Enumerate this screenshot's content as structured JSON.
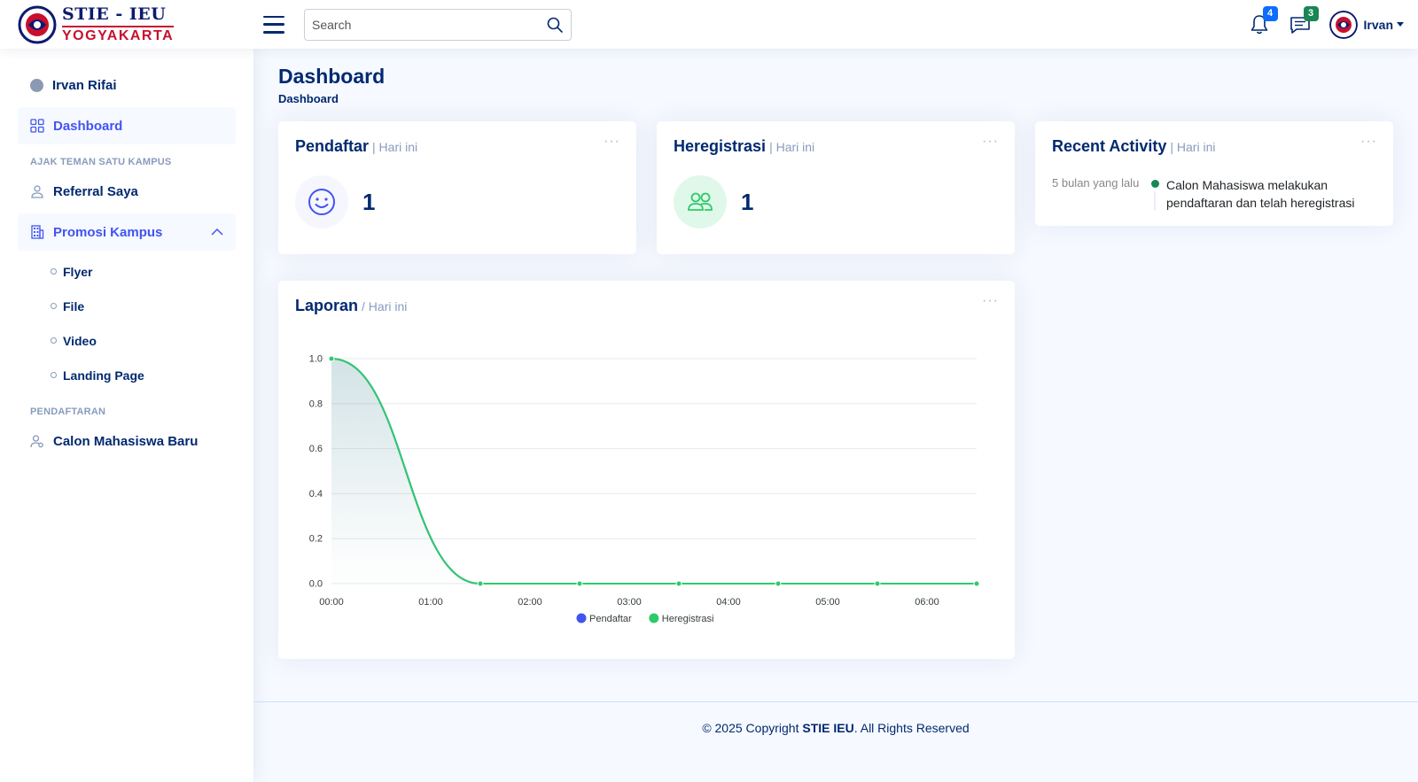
{
  "header": {
    "logo_top": "STIE - IEU",
    "logo_bottom": "YOGYAKARTA",
    "search_placeholder": "Search",
    "notifications_count": "4",
    "messages_count": "3",
    "profile_name": "Irvan"
  },
  "colors": {
    "primary": "#4154f1",
    "navy": "#012970",
    "success": "#2eca6a",
    "badge_blue": "#0d6efd",
    "badge_green": "#198754"
  },
  "sidebar": {
    "user_name": "Irvan Rifai",
    "dashboard": "Dashboard",
    "heading_invite": "AJAK TEMAN SATU KAMPUS",
    "referral": "Referral Saya",
    "promo": "Promosi Kampus",
    "promo_items": [
      "Flyer",
      "File",
      "Video",
      "Landing Page"
    ],
    "heading_register": "PENDAFTARAN",
    "new_students": "Calon Mahasiswa Baru"
  },
  "page": {
    "title": "Dashboard",
    "breadcrumb": "Dashboard"
  },
  "cards": {
    "pendaftar": {
      "title": "Pendaftar",
      "sub": "| Hari ini",
      "value": "1",
      "icon": "smile-icon"
    },
    "heregistrasi": {
      "title": "Heregistrasi",
      "sub": "| Hari ini",
      "value": "1",
      "icon": "people-icon"
    },
    "activity": {
      "title": "Recent Activity",
      "sub": "| Hari ini",
      "time": "5 bulan yang lalu",
      "text": "Calon Mahasiswa melakukan pendaftaran dan telah heregistrasi"
    },
    "laporan": {
      "title": "Laporan",
      "sub": "/ Hari ini"
    }
  },
  "chart_data": {
    "type": "area",
    "x": [
      "00:00",
      "01:30",
      "02:30",
      "03:30",
      "04:30",
      "05:30",
      "06:30"
    ],
    "x_ticks": [
      "00:00",
      "01:00",
      "02:00",
      "03:00",
      "04:00",
      "05:00",
      "06:00"
    ],
    "y_ticks": [
      "0.0",
      "0.2",
      "0.4",
      "0.6",
      "0.8",
      "1.0"
    ],
    "ylim": [
      0,
      1
    ],
    "xlim_hours": [
      0,
      6.5
    ],
    "x_hours": [
      0,
      1.5,
      2.5,
      3.5,
      4.5,
      5.5,
      6.5
    ],
    "series": [
      {
        "name": "Pendaftar",
        "color": "#4154f1",
        "values": [
          1,
          0,
          0,
          0,
          0,
          0,
          0
        ]
      },
      {
        "name": "Heregistrasi",
        "color": "#2eca6a",
        "values": [
          1,
          0,
          0,
          0,
          0,
          0,
          0
        ]
      }
    ],
    "grid": true,
    "legend": "bottom"
  },
  "footer": {
    "prefix": "© 2025 Copyright ",
    "brand": "STIE IEU",
    "suffix": ". All Rights Reserved"
  }
}
